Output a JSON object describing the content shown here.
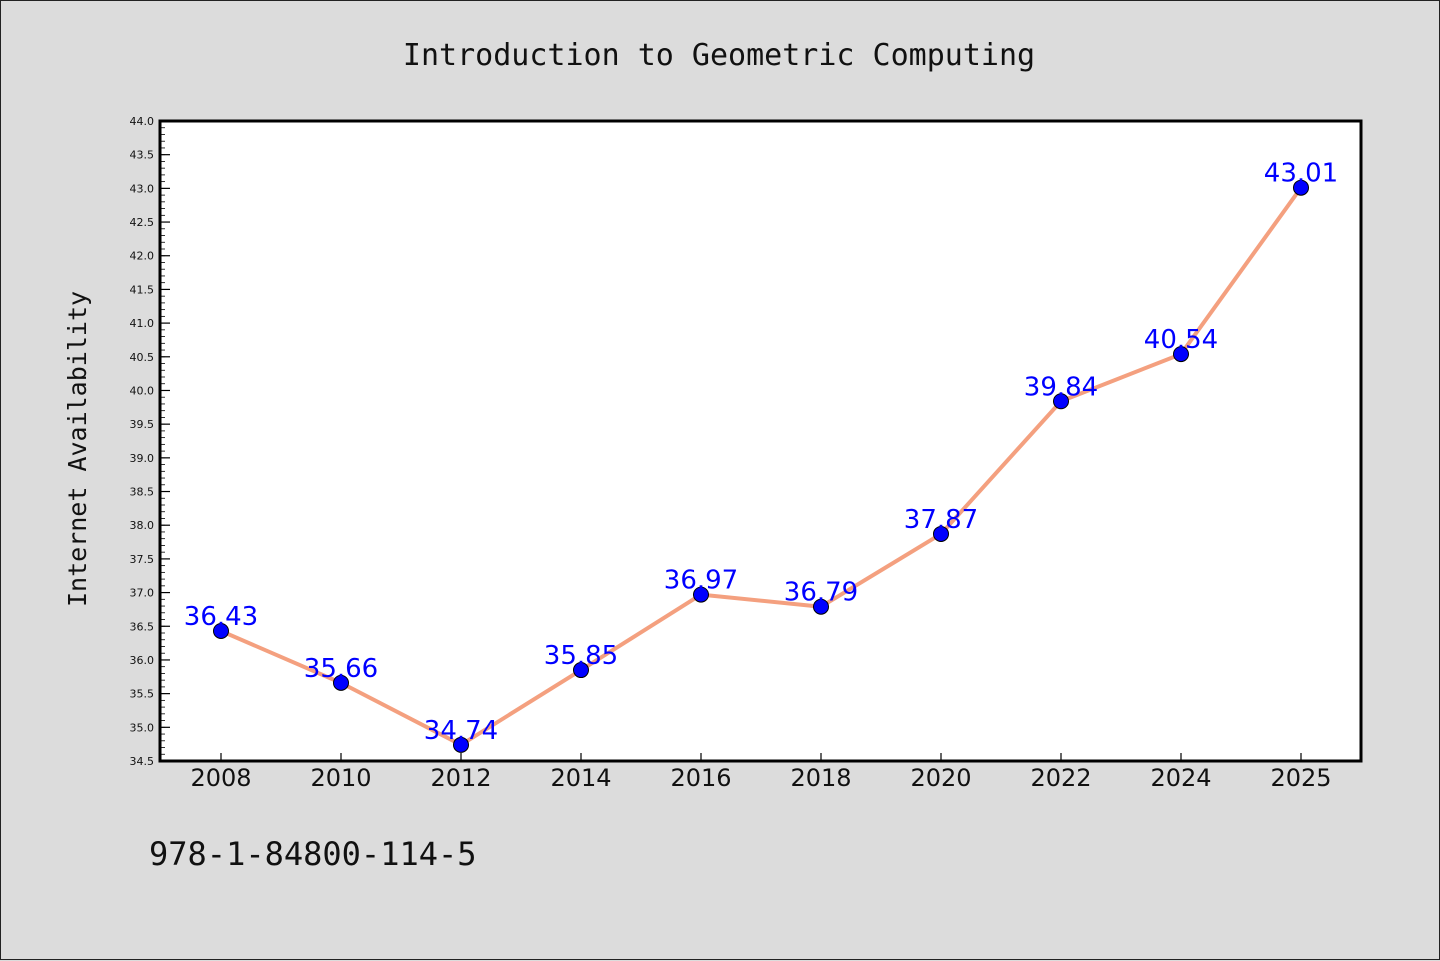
{
  "isbn": "978-1-84800-114-5",
  "colors": {
    "background": "#dcdcdc",
    "plot_background": "#ffffff",
    "line": "#f4a07f",
    "marker": "#0000ff",
    "data_label": "#0000ff"
  },
  "chart_data": {
    "type": "line",
    "title": "Introduction to Geometric Computing",
    "xlabel": "",
    "ylabel": "Internet Availability",
    "categories": [
      "2008",
      "2010",
      "2012",
      "2014",
      "2016",
      "2018",
      "2020",
      "2022",
      "2024",
      "2025"
    ],
    "values": [
      36.43,
      35.66,
      34.74,
      35.85,
      36.97,
      36.79,
      37.87,
      39.84,
      40.54,
      43.01
    ],
    "data_labels": [
      "36.43",
      "35.66",
      "34.74",
      "35.85",
      "36.97",
      "36.79",
      "37.87",
      "39.84",
      "40.54",
      "43.01"
    ],
    "ylim": [
      34.5,
      44.0
    ],
    "yticks": [
      "34.5",
      "35.0",
      "35.5",
      "36.0",
      "36.5",
      "37.0",
      "37.5",
      "38.0",
      "38.5",
      "39.0",
      "39.5",
      "40.0",
      "40.5",
      "41.0",
      "41.5",
      "42.0",
      "42.5",
      "43.0",
      "43.5",
      "44.0"
    ],
    "grid": false,
    "legend": "none",
    "marker": "circle"
  }
}
